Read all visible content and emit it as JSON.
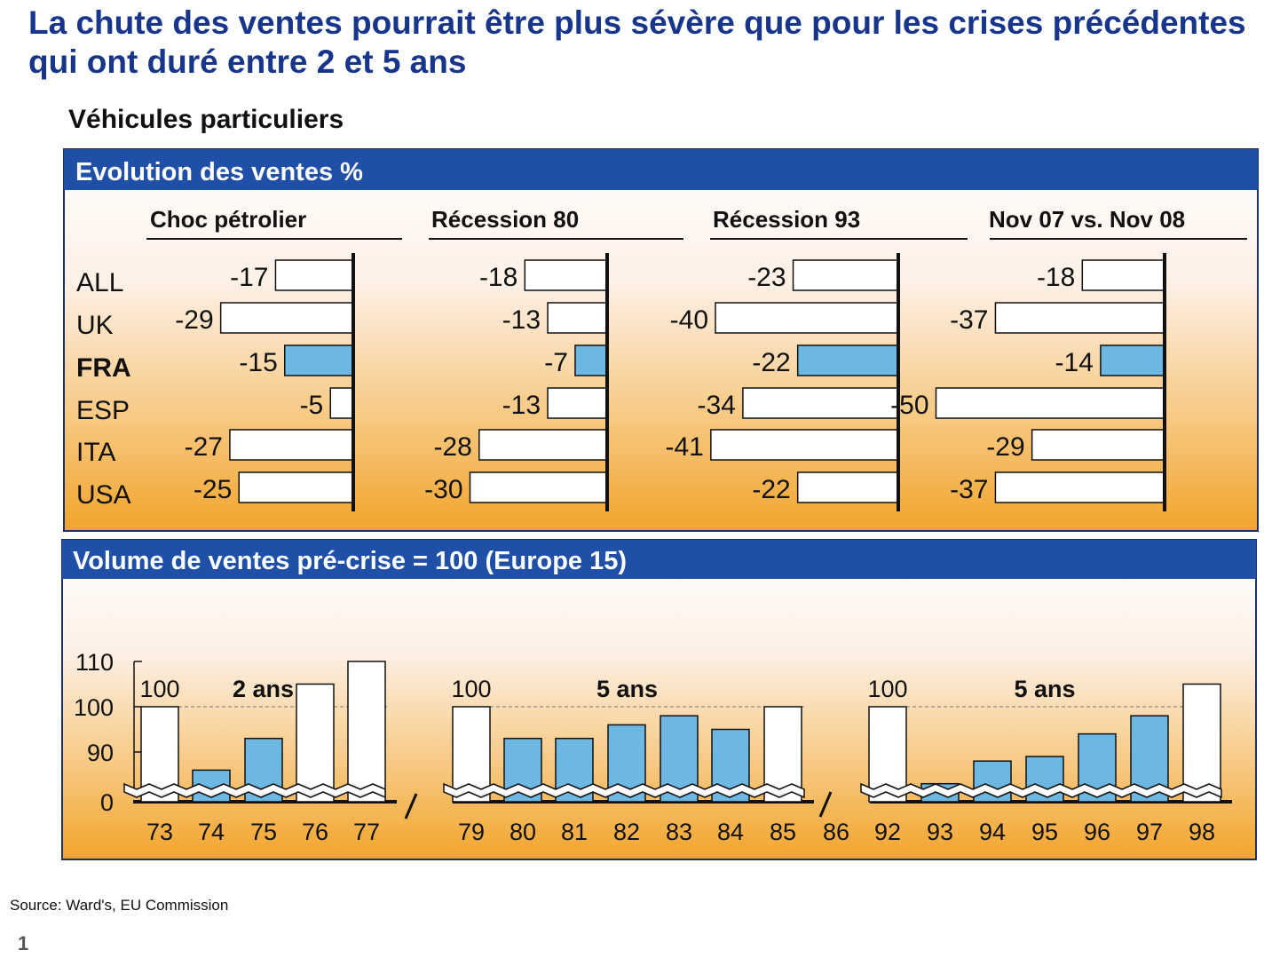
{
  "title": "La chute des ventes pourrait être plus sévère que pour les crises précédentes qui ont duré entre 2 et 5 ans",
  "subtitle": "Véhicules particuliers",
  "source": "Source: Ward's, EU Commission",
  "page_number": "1",
  "colors": {
    "header_blue": "#1f4fa6",
    "title_blue": "#17358a",
    "bar_blue": "#6cb8e2",
    "bar_white": "#ffffff",
    "orange": "#f2a52c"
  },
  "chart_data": [
    {
      "type": "bar",
      "orientation": "horizontal",
      "title": "Evolution des ventes %",
      "categories": [
        "ALL",
        "UK",
        "FRA",
        "ESP",
        "ITA",
        "USA"
      ],
      "highlight_category": "FRA",
      "series": [
        {
          "name": "Choc pétrolier",
          "values": [
            -17,
            -29,
            -15,
            -5,
            -27,
            -25
          ]
        },
        {
          "name": "Récession 80",
          "values": [
            -18,
            -13,
            -7,
            -13,
            -28,
            -30
          ]
        },
        {
          "name": "Récession 93",
          "values": [
            -23,
            -40,
            -22,
            -34,
            -41,
            -22
          ]
        },
        {
          "name": "Nov 07 vs. Nov 08",
          "values": [
            -18,
            -37,
            -14,
            -50,
            -29,
            -37
          ]
        }
      ]
    },
    {
      "type": "bar",
      "title": "Volume de ventes pré-crise = 100 (Europe 15)",
      "yticks": [
        "0",
        "90",
        "100",
        "110"
      ],
      "ylim": [
        0,
        110
      ],
      "axis_break": true,
      "reference_line": 100,
      "groups": [
        {
          "label": "2 ans",
          "base_label": "100",
          "x": [
            "73",
            "74",
            "75",
            "76",
            "77"
          ],
          "values": [
            100,
            86,
            93,
            105,
            110
          ],
          "highlight": [
            false,
            true,
            true,
            false,
            false
          ]
        },
        {
          "label": "5 ans",
          "base_label": "100",
          "x": [
            "79",
            "80",
            "81",
            "82",
            "83",
            "84",
            "85"
          ],
          "values": [
            100,
            93,
            93,
            96,
            98,
            95,
            100
          ],
          "highlight": [
            false,
            true,
            true,
            true,
            true,
            true,
            false
          ]
        },
        {
          "label": "5 ans",
          "base_label": "100",
          "x": [
            "92",
            "93",
            "94",
            "95",
            "96",
            "97",
            "98"
          ],
          "values": [
            100,
            83,
            88,
            89,
            94,
            98,
            105
          ],
          "highlight": [
            false,
            true,
            true,
            true,
            true,
            true,
            false
          ]
        }
      ],
      "break_label": "86"
    }
  ]
}
